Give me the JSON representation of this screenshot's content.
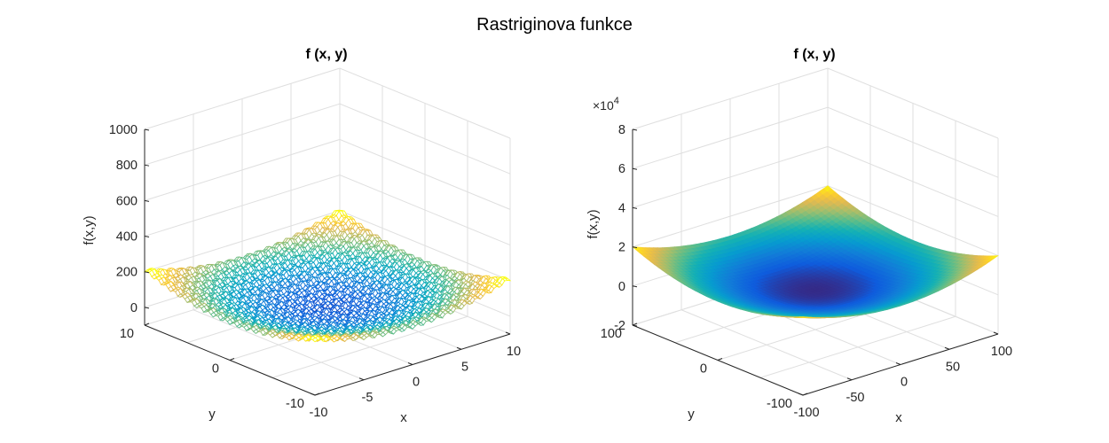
{
  "figure": {
    "title": "Rastriginova funkce"
  },
  "colors": {
    "yellow": "#f9fb0e",
    "orange": "#f2b43a",
    "teal": "#20b0b0",
    "blue": "#2f3ff0",
    "axis": "#262626",
    "grid": "#dfdfdf"
  },
  "chart_data": [
    {
      "type": "surface",
      "surface_style": "mesh",
      "function": "Rastrigin: 20 + x^2 + y^2 - 10(cos(2πx) + cos(2πy))",
      "title": "f (x, y)",
      "xlabel": "x",
      "ylabel": "y",
      "zlabel": "f(x,y)",
      "xlim": [
        -10,
        10
      ],
      "ylim": [
        -10,
        10
      ],
      "zlim": [
        -100,
        1000
      ],
      "xticks": [
        -10,
        -5,
        0,
        5,
        10
      ],
      "yticks": [
        -10,
        0,
        10
      ],
      "zticks": [
        0,
        200,
        400,
        600,
        800,
        1000
      ],
      "xtick_labels": [
        "-10",
        "-5",
        "0",
        "5",
        "10"
      ],
      "ytick_labels": [
        "-10",
        "0",
        "10"
      ],
      "ztick_labels": [
        "0",
        "200",
        "400",
        "600",
        "800",
        "1000"
      ],
      "grid": true,
      "colormap": "parula"
    },
    {
      "type": "surface",
      "surface_style": "smooth",
      "function": "Rastrigin: 20 + x^2 + y^2 - 10(cos(2πx) + cos(2πy))",
      "title": "f (x, y)",
      "xlabel": "x",
      "ylabel": "y",
      "zlabel": "f(x,y)",
      "xlim": [
        -100,
        100
      ],
      "ylim": [
        -100,
        100
      ],
      "zlim": [
        -20000,
        80000
      ],
      "xticks": [
        -100,
        -50,
        0,
        50,
        100
      ],
      "yticks": [
        -100,
        0,
        100
      ],
      "zticks": [
        -20000,
        0,
        20000,
        40000,
        60000,
        80000
      ],
      "xtick_labels": [
        "-100",
        "-50",
        "0",
        "50",
        "100"
      ],
      "ytick_labels": [
        "-100",
        "0",
        "100"
      ],
      "ztick_labels": [
        "-2",
        "0",
        "2",
        "4",
        "6",
        "8"
      ],
      "z_exponent_label": "×10",
      "z_exponent_power": "4",
      "grid": true,
      "colormap": "parula"
    }
  ]
}
